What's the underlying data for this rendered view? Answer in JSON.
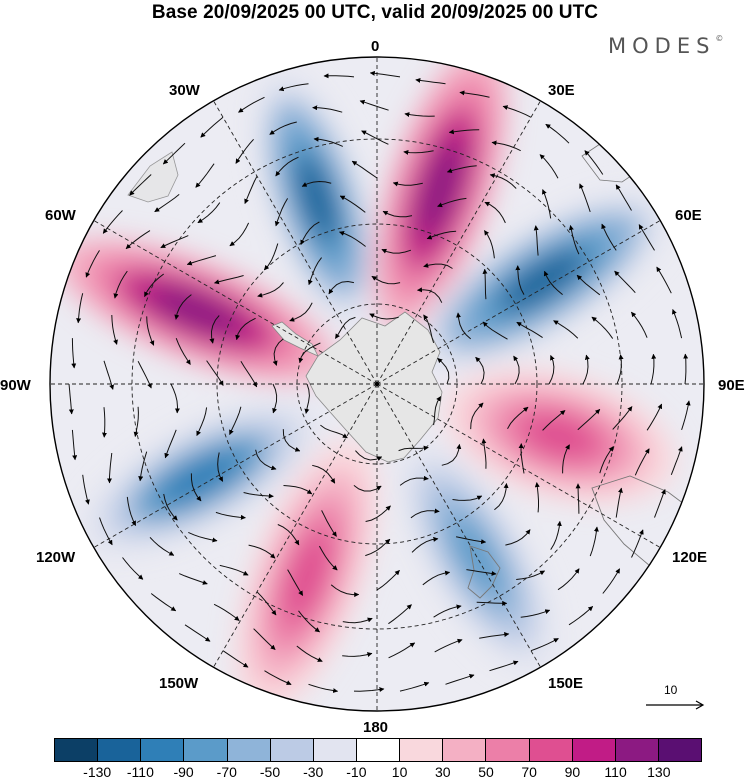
{
  "title": "Base 20/09/2025 00 UTC, valid 20/09/2025 00 UTC",
  "brand": "MODES",
  "brand_mark": "©",
  "labels": {
    "lon_0": "0",
    "lon_30e": "30E",
    "lon_60e": "60E",
    "lon_90e": "90E",
    "lon_120e": "120E",
    "lon_150e": "150E",
    "lon_180": "180",
    "lon_150w": "150W",
    "lon_120w": "120W",
    "lon_90w": "90W",
    "lon_60w": "60W",
    "lon_30w": "30W"
  },
  "reference_vector": {
    "value": "10",
    "icon": "arrow-right-icon"
  },
  "colorbar": {
    "ticks": [
      "-130",
      "-110",
      "-90",
      "-70",
      "-50",
      "-30",
      "-10",
      "10",
      "30",
      "50",
      "70",
      "90",
      "110",
      "130"
    ],
    "colors": [
      "#0c3f66",
      "#19639a",
      "#2f7fb7",
      "#5b9bc9",
      "#8fb4d9",
      "#bccbe5",
      "#e2e4f0",
      "#ffffff",
      "#f9d8dd",
      "#f4b0c4",
      "#ec7fa8",
      "#df4f91",
      "#c11c86",
      "#8c1a82",
      "#5a0f72"
    ]
  },
  "anomaly_lobes": [
    {
      "name": "neg-0-20w",
      "value": -115
    },
    {
      "name": "pos-20e-35e",
      "value": 125
    },
    {
      "name": "neg-60e",
      "value": -115
    },
    {
      "name": "pos-95e-110e",
      "value": 70
    },
    {
      "name": "neg-140e-160e",
      "value": -75
    },
    {
      "name": "pos-160w",
      "value": 85
    },
    {
      "name": "neg-110w",
      "value": -95
    },
    {
      "name": "pos-60w-80w",
      "value": 120
    }
  ]
}
